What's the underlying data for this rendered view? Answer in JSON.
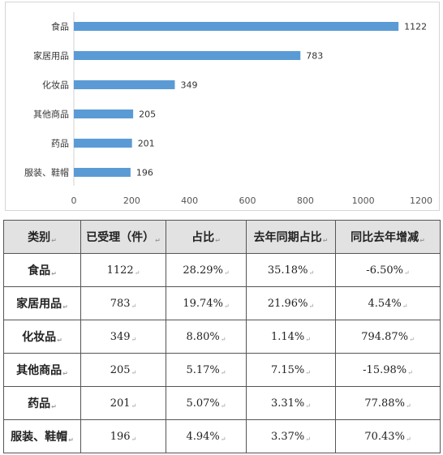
{
  "chart_data": {
    "type": "bar",
    "orientation": "horizontal",
    "categories": [
      "食品",
      "家居用品",
      "化妆品",
      "其他商品",
      "药品",
      "服装、鞋帽"
    ],
    "values": [
      1122,
      783,
      349,
      205,
      201,
      196
    ],
    "title": "",
    "xlabel": "",
    "ylabel": "",
    "xlim": [
      0,
      1200
    ],
    "x_ticks": [
      "0",
      "200",
      "400",
      "600",
      "800",
      "1000",
      "1200"
    ],
    "grid": false,
    "legend": "none",
    "bar_color": "#5b9bd5",
    "data_labels": [
      "1122",
      "783",
      "349",
      "205",
      "201",
      "196"
    ]
  },
  "table": {
    "header_bg": "#e2e2e2",
    "headers": [
      "类别",
      "已受理（件）",
      "占比",
      "去年同期占比",
      "同比去年增减"
    ],
    "paragraph_mark": "↵",
    "rows": [
      [
        "食品",
        "1122",
        "28.29%",
        "35.18%",
        "-6.50%"
      ],
      [
        "家居用品",
        "783",
        "19.74%",
        "21.96%",
        "4.54%"
      ],
      [
        "化妆品",
        "349",
        "8.80%",
        "1.14%",
        "794.87%"
      ],
      [
        "其他商品",
        "205",
        "5.17%",
        "7.15%",
        "-15.98%"
      ],
      [
        "药品",
        "201",
        "5.07%",
        "3.31%",
        "77.88%"
      ],
      [
        "服装、鞋帽",
        "196",
        "4.94%",
        "3.37%",
        "70.43%"
      ]
    ]
  }
}
